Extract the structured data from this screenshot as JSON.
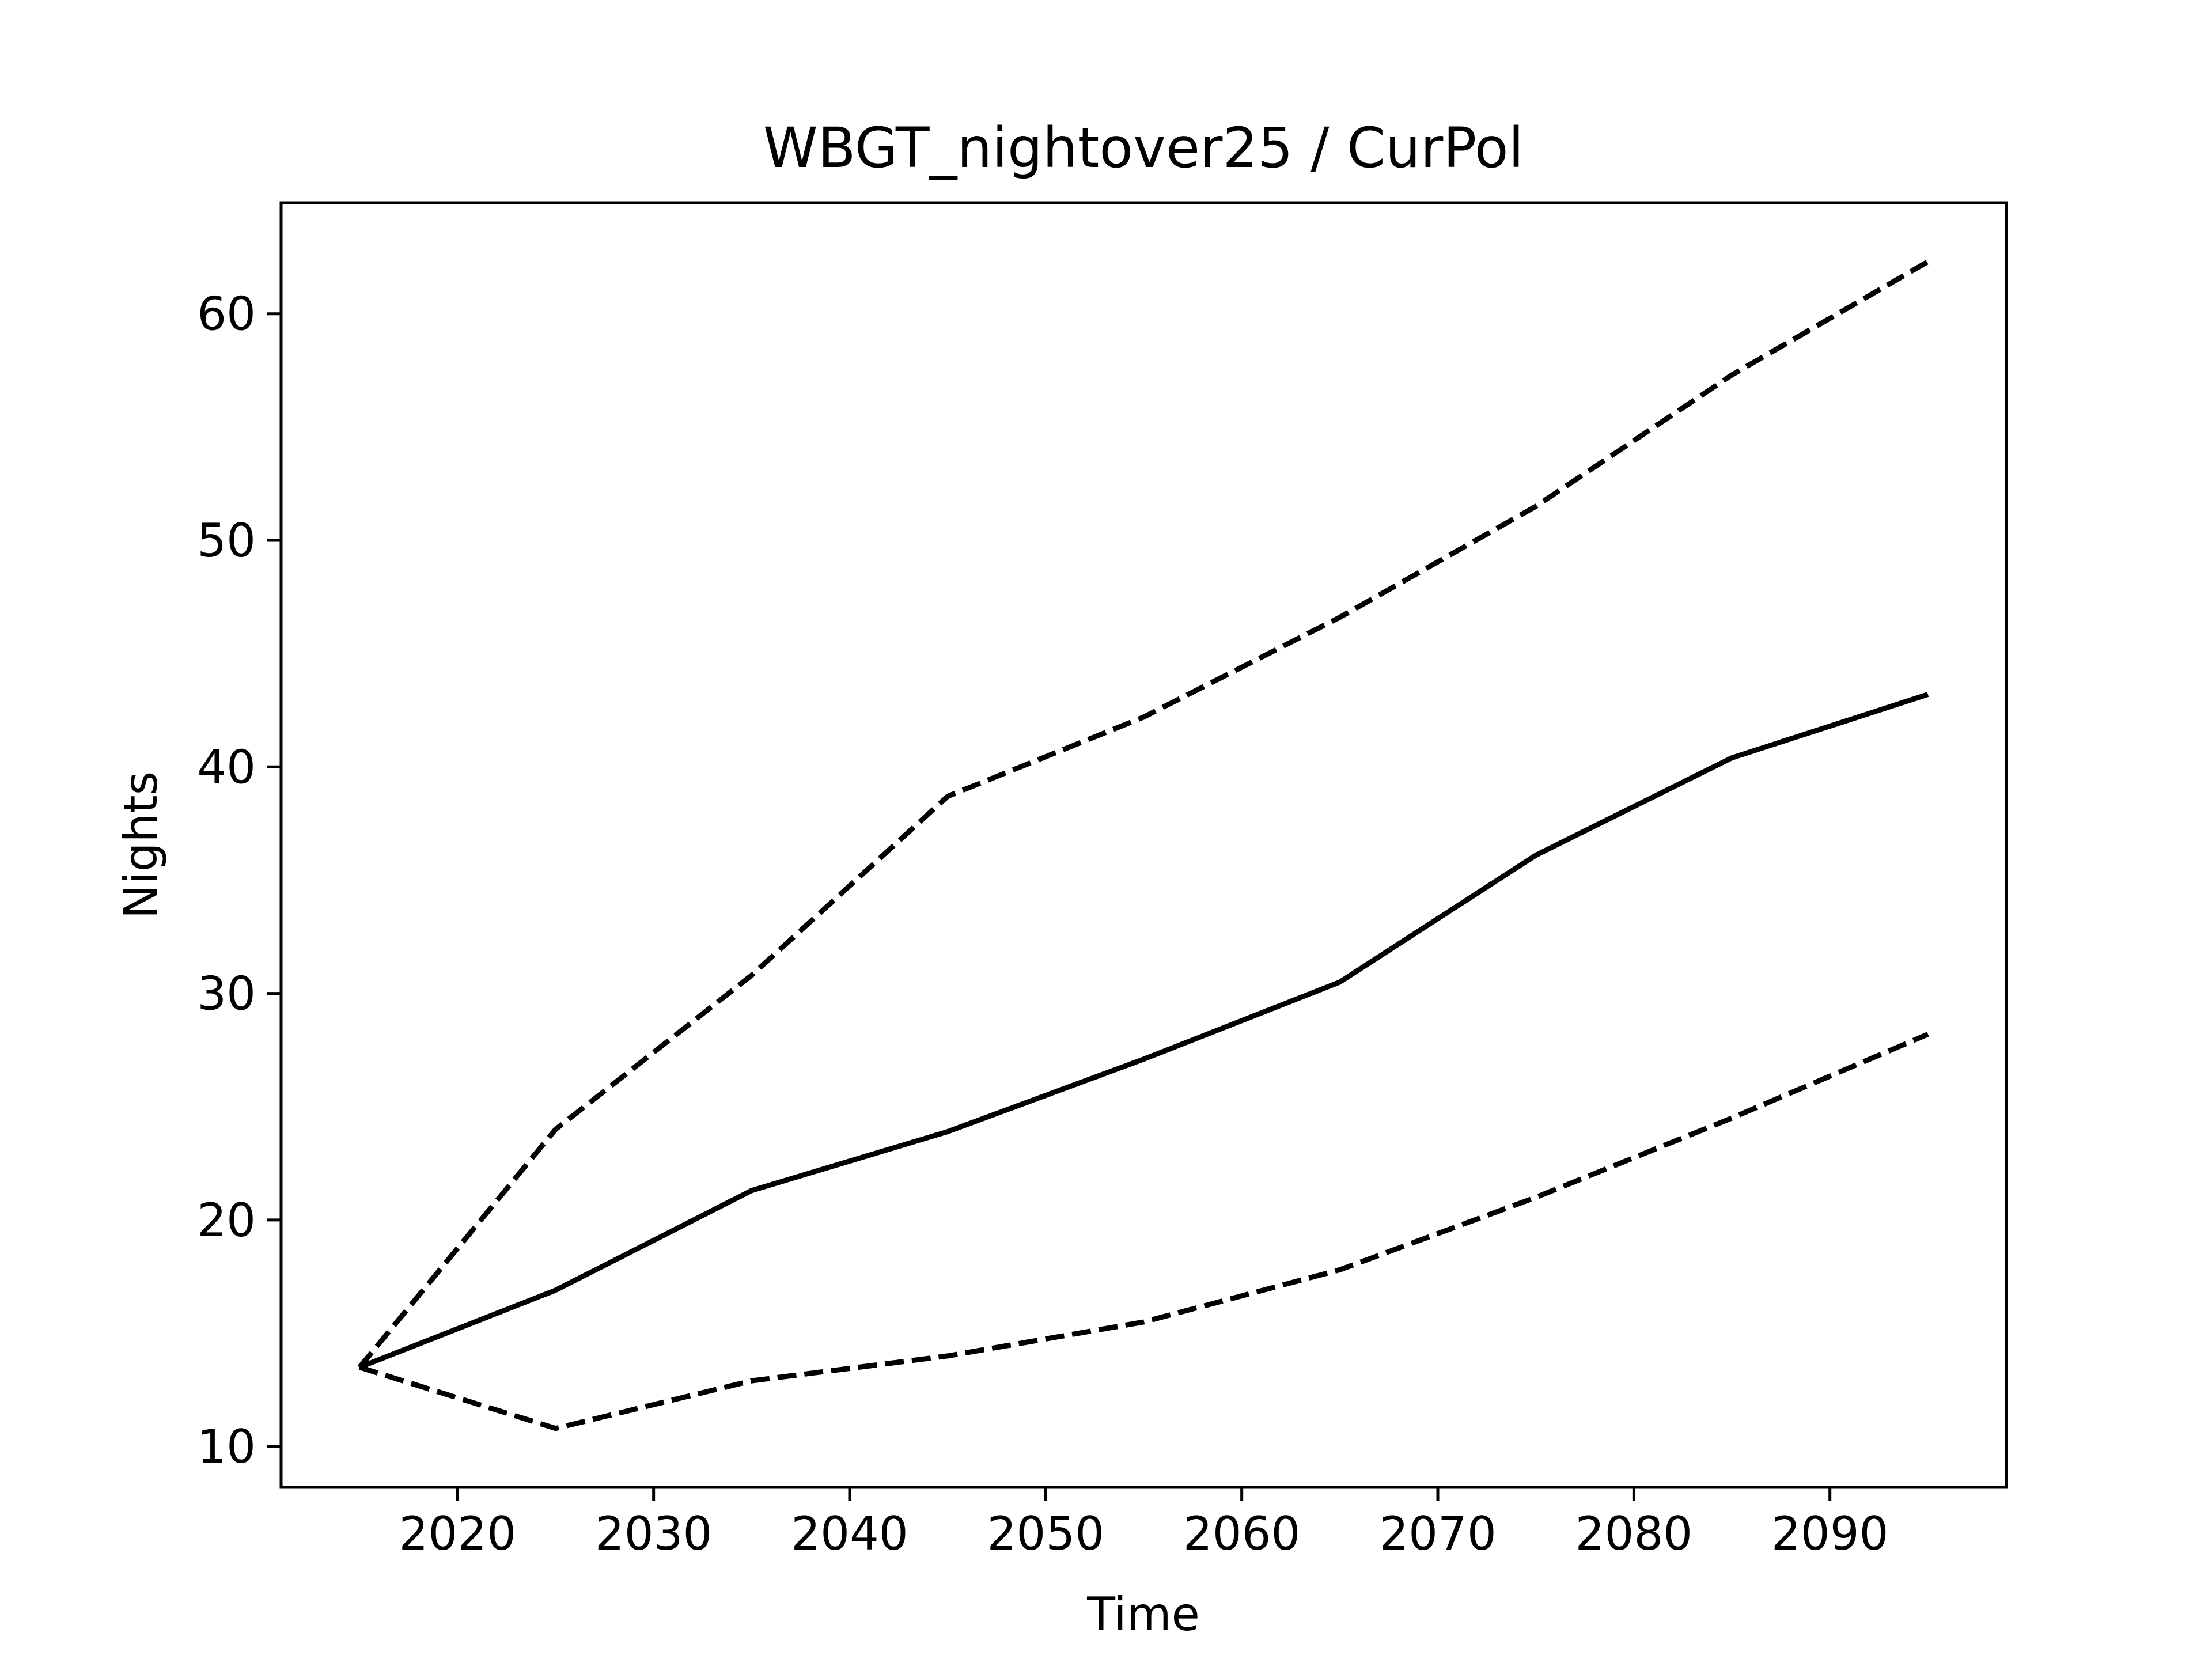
{
  "chart_data": {
    "type": "line",
    "title": "WBGT_nightover25 / CurPol",
    "xlabel": "Time",
    "ylabel": "Nights",
    "xlim": [
      2011,
      2099
    ],
    "ylim": [
      8.2,
      64.9
    ],
    "x_ticks": [
      2020,
      2030,
      2040,
      2050,
      2060,
      2070,
      2080,
      2090
    ],
    "y_ticks": [
      10,
      20,
      30,
      40,
      50,
      60
    ],
    "grid": false,
    "x": [
      2015,
      2025,
      2035,
      2045,
      2055,
      2065,
      2075,
      2085,
      2095
    ],
    "series": [
      {
        "style": "solid",
        "color": "#000000",
        "values": [
          13.5,
          16.9,
          21.3,
          23.9,
          27.1,
          30.5,
          36.1,
          40.4,
          43.2
        ]
      },
      {
        "style": "dashed",
        "color": "#000000",
        "values": [
          13.5,
          24.0,
          30.8,
          38.7,
          42.2,
          46.6,
          51.5,
          57.3,
          62.3
        ]
      },
      {
        "style": "dashed",
        "color": "#000000",
        "values": [
          13.5,
          10.8,
          12.9,
          14.0,
          15.5,
          17.8,
          21.0,
          24.5,
          28.2
        ]
      }
    ]
  }
}
